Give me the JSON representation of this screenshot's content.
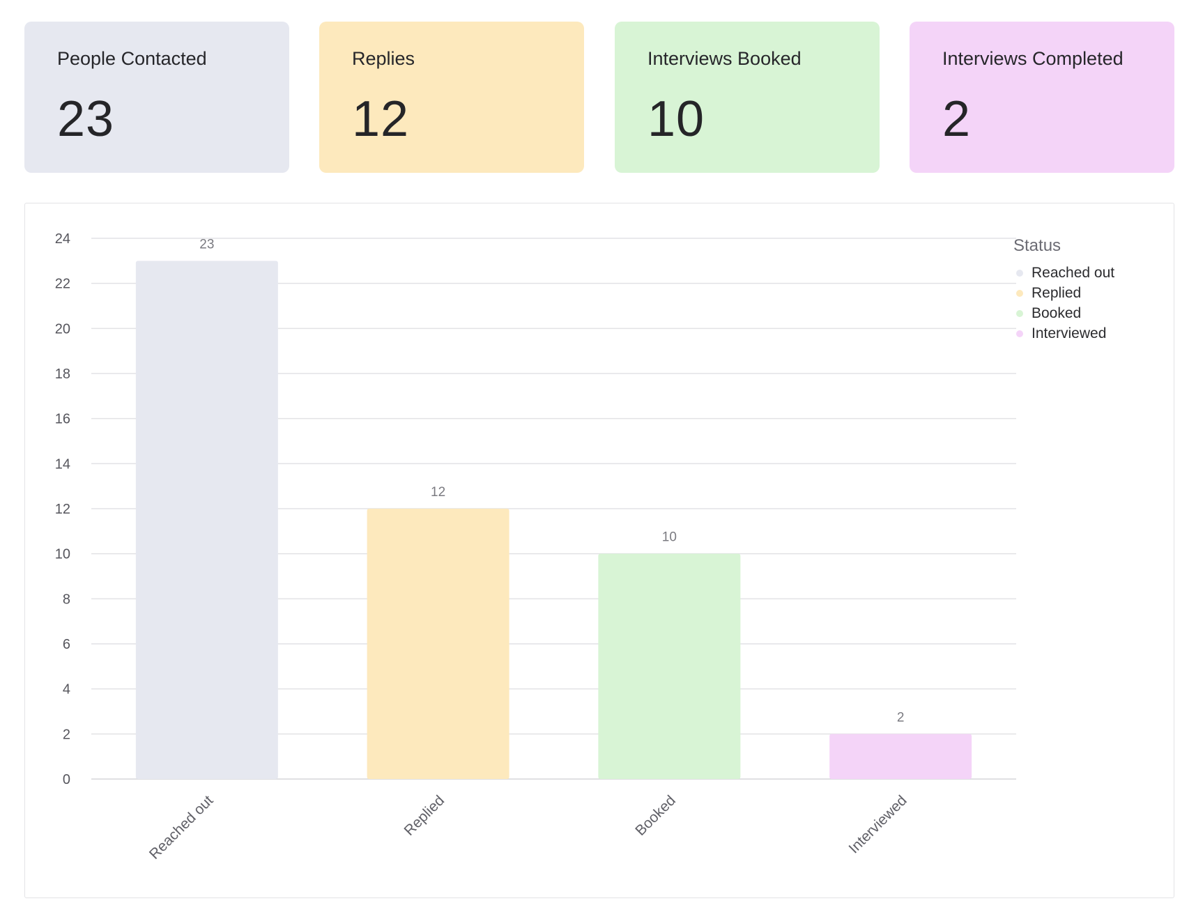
{
  "cards": [
    {
      "title": "People Contacted",
      "value": "23",
      "color": "#e6e8f0"
    },
    {
      "title": "Replies",
      "value": "12",
      "color": "#fde9bd"
    },
    {
      "title": "Interviews Booked",
      "value": "10",
      "color": "#d8f4d5"
    },
    {
      "title": "Interviews Completed",
      "value": "2",
      "color": "#f4d4f8"
    }
  ],
  "legend": {
    "title": "Status",
    "items": [
      {
        "label": "Reached out",
        "color": "#e6e8f0"
      },
      {
        "label": "Replied",
        "color": "#fde9bd"
      },
      {
        "label": "Booked",
        "color": "#d8f4d5"
      },
      {
        "label": "Interviewed",
        "color": "#f4d4f8"
      }
    ]
  },
  "chart_data": {
    "type": "bar",
    "categories": [
      "Reached out",
      "Replied",
      "Booked",
      "Interviewed"
    ],
    "values": [
      23,
      12,
      10,
      2
    ],
    "colors": [
      "#e6e8f0",
      "#fde9bd",
      "#d8f4d5",
      "#f4d4f8"
    ],
    "ylim": [
      0,
      24
    ],
    "yticks": [
      0,
      2,
      4,
      6,
      8,
      10,
      12,
      14,
      16,
      18,
      20,
      22,
      24
    ],
    "data_labels": true,
    "grid": true,
    "legend_position": "right",
    "x_tick_rotation": "diagonal",
    "title": "",
    "xlabel": "",
    "ylabel": ""
  }
}
